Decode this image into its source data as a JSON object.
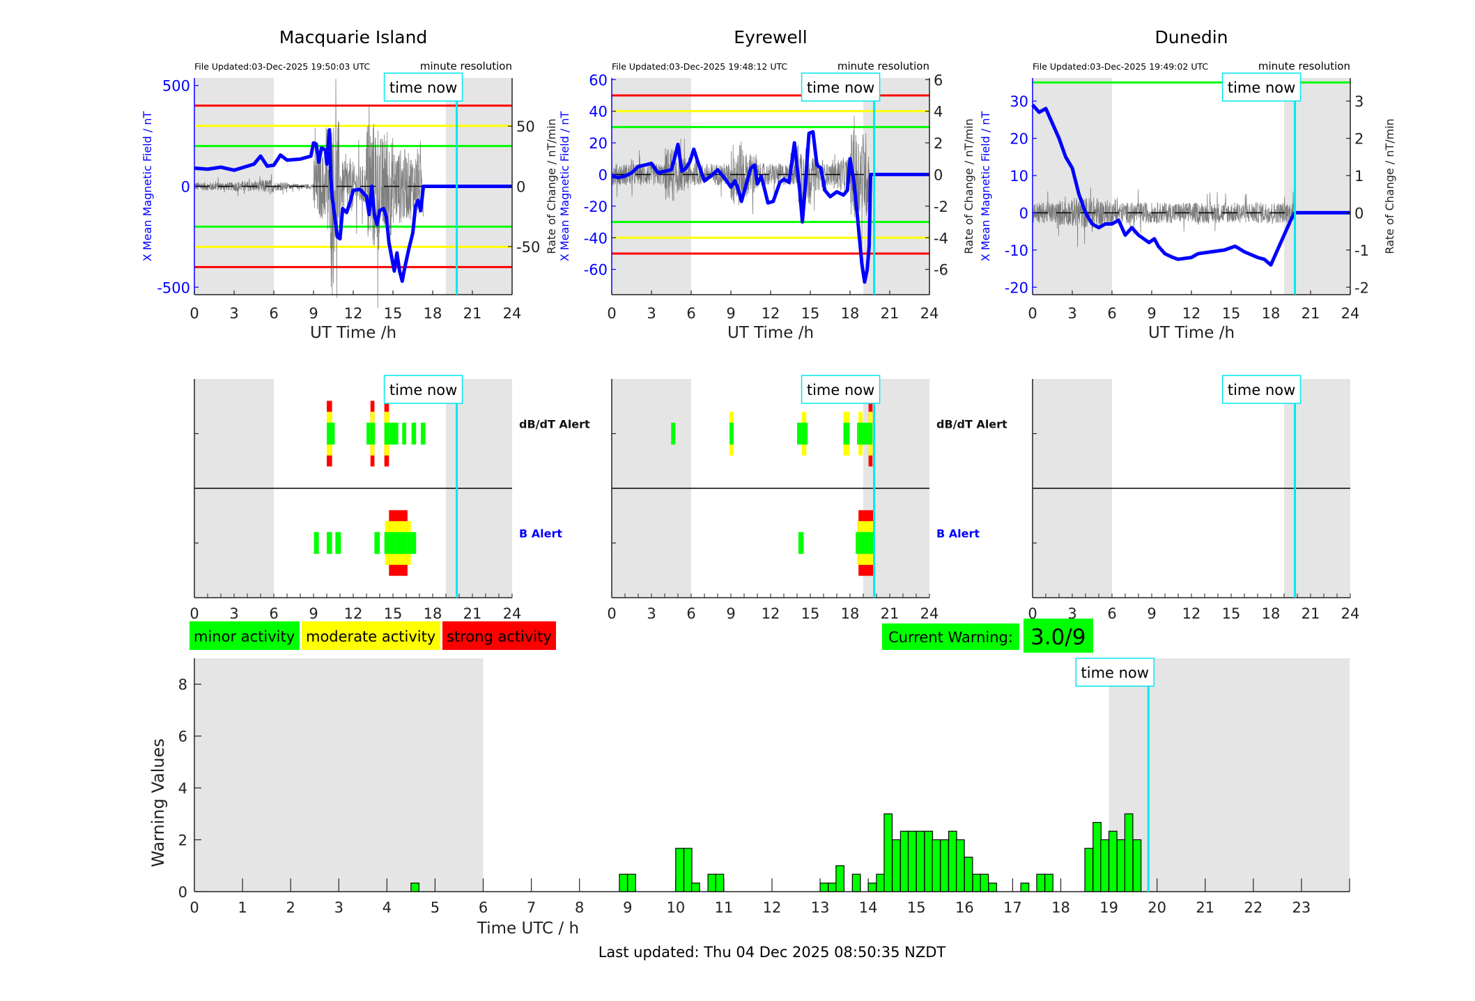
{
  "colors": {
    "field": "#0000ff",
    "rate": "#555555",
    "minor": "#00ff00",
    "moderate": "#ffff00",
    "strong": "#ff0000",
    "time_now": "#00e8f0",
    "night_shade": "#e5e5e5"
  },
  "time_now_label": "time now",
  "time_now_hours": 19.82,
  "night_shade": [
    [
      0,
      6
    ],
    [
      19,
      24
    ]
  ],
  "stations": [
    {
      "title": "Macquarie Island",
      "file_updated": "File Updated:03-Dec-2025 19:50:03 UTC",
      "resolution": "minute resolution",
      "left_label": "X Mean Magnetic Field / nT",
      "right_label": "Rate of Change / nT/min",
      "xlabel": "UT Time /h",
      "xticks": [
        "0",
        "3",
        "6",
        "9",
        "12",
        "15",
        "18",
        "21",
        "24"
      ],
      "ylim_left": [
        -537,
        537
      ],
      "ylim_right": [
        -90,
        90
      ],
      "yticks_left": [
        "500",
        "0",
        "-500"
      ],
      "yticks_right": [
        "50",
        "0",
        "-50"
      ],
      "thresholds": [
        {
          "value": 400,
          "level": "strong"
        },
        {
          "value": 300,
          "level": "moderate"
        },
        {
          "value": 200,
          "level": "minor"
        },
        {
          "value": -200,
          "level": "minor"
        },
        {
          "value": -300,
          "level": "moderate"
        },
        {
          "value": -400,
          "level": "strong"
        }
      ],
      "x_field": [
        [
          0,
          90
        ],
        [
          1,
          85
        ],
        [
          2,
          95
        ],
        [
          3,
          80
        ],
        [
          4,
          100
        ],
        [
          4.5,
          110
        ],
        [
          5,
          150
        ],
        [
          5.5,
          100
        ],
        [
          6,
          105
        ],
        [
          6.5,
          155
        ],
        [
          7,
          130
        ],
        [
          8,
          135
        ],
        [
          8.8,
          150
        ],
        [
          9,
          215
        ],
        [
          9.2,
          210
        ],
        [
          9.4,
          120
        ],
        [
          9.6,
          190
        ],
        [
          9.9,
          180
        ],
        [
          10.0,
          110
        ],
        [
          10.2,
          280
        ],
        [
          10.3,
          50
        ],
        [
          10.4,
          -50
        ],
        [
          10.6,
          -150
        ],
        [
          10.8,
          -250
        ],
        [
          11,
          -260
        ],
        [
          11.2,
          -110
        ],
        [
          11.5,
          -130
        ],
        [
          11.8,
          -70
        ],
        [
          12,
          -20
        ],
        [
          12.5,
          -15
        ],
        [
          13,
          -50
        ],
        [
          13.2,
          -140
        ],
        [
          13.4,
          0
        ],
        [
          13.6,
          -140
        ],
        [
          13.8,
          -190
        ],
        [
          14.0,
          -120
        ],
        [
          14.3,
          -110
        ],
        [
          14.5,
          -150
        ],
        [
          14.7,
          -280
        ],
        [
          14.9,
          -350
        ],
        [
          15.1,
          -420
        ],
        [
          15.3,
          -330
        ],
        [
          15.5,
          -420
        ],
        [
          15.7,
          -470
        ],
        [
          15.9,
          -400
        ],
        [
          16.2,
          -310
        ],
        [
          16.5,
          -230
        ],
        [
          16.7,
          -100
        ],
        [
          16.9,
          -70
        ],
        [
          17.1,
          -120
        ],
        [
          17.3,
          0
        ],
        [
          24,
          0
        ]
      ],
      "rate_envelope": [
        5,
        5,
        5,
        6,
        6,
        8,
        5,
        3,
        3,
        40,
        80,
        30,
        25,
        80,
        60,
        45,
        40,
        40,
        0,
        0,
        0,
        0,
        0,
        0
      ],
      "rate_end": 17.3,
      "alerts": {
        "dbdt_label": "dB/dT Alert",
        "b_label": "B Alert",
        "dbdt": [
          [
            10.0,
            10.4,
            3
          ],
          [
            10.4,
            10.6,
            1
          ],
          [
            13.0,
            13.3,
            1
          ],
          [
            13.3,
            13.6,
            3
          ],
          [
            13.6,
            13.65,
            1
          ],
          [
            14.35,
            14.7,
            3
          ],
          [
            14.7,
            15.4,
            1
          ],
          [
            15.7,
            16.0,
            1
          ],
          [
            16.4,
            16.75,
            1
          ],
          [
            17.1,
            17.45,
            1
          ]
        ],
        "b": [
          [
            9.03,
            9.4,
            1
          ],
          [
            10.0,
            10.4,
            1
          ],
          [
            10.65,
            11.07,
            1
          ],
          [
            13.6,
            14.0,
            1
          ],
          [
            14.35,
            14.4,
            1
          ],
          [
            14.4,
            14.7,
            2
          ],
          [
            14.7,
            16.1,
            3
          ],
          [
            16.1,
            16.35,
            2
          ],
          [
            16.35,
            16.75,
            1
          ]
        ]
      }
    },
    {
      "title": "Eyrewell",
      "file_updated": "File Updated:03-Dec-2025 19:48:12 UTC",
      "resolution": "minute resolution",
      "left_label": "X Mean Magnetic Field / nT",
      "right_label": "Rate of Change / nT/min",
      "xlabel": "UT Time /h",
      "xticks": [
        "0",
        "3",
        "6",
        "9",
        "12",
        "15",
        "18",
        "21",
        "24"
      ],
      "ylim_left": [
        -76,
        61
      ],
      "ylim_right": [
        -7.6,
        6.1
      ],
      "yticks_left": [
        "60",
        "40",
        "20",
        "0",
        "-20",
        "-40",
        "-60"
      ],
      "yticks_right": [
        "6",
        "4",
        "2",
        "0",
        "-2",
        "-4",
        "-6"
      ],
      "thresholds": [
        {
          "value": 50,
          "level": "strong"
        },
        {
          "value": 40,
          "level": "moderate"
        },
        {
          "value": 30,
          "level": "minor"
        },
        {
          "value": -30,
          "level": "minor"
        },
        {
          "value": -40,
          "level": "moderate"
        },
        {
          "value": -50,
          "level": "strong"
        }
      ],
      "x_field": [
        [
          0,
          -1
        ],
        [
          0.5,
          -2
        ],
        [
          1,
          -1
        ],
        [
          1.5,
          1
        ],
        [
          2,
          5
        ],
        [
          2.5,
          6
        ],
        [
          3,
          7
        ],
        [
          3.5,
          1
        ],
        [
          4,
          2
        ],
        [
          4.5,
          3
        ],
        [
          4.8,
          12
        ],
        [
          5,
          19
        ],
        [
          5.3,
          2
        ],
        [
          5.6,
          4
        ],
        [
          5.9,
          8
        ],
        [
          6.2,
          16
        ],
        [
          6.5,
          8
        ],
        [
          7,
          -4
        ],
        [
          7.5,
          -1
        ],
        [
          8,
          3
        ],
        [
          8.5,
          -2
        ],
        [
          9,
          -8
        ],
        [
          9.3,
          -4
        ],
        [
          9.5,
          -8
        ],
        [
          9.8,
          -17
        ],
        [
          10.2,
          -5
        ],
        [
          10.5,
          4
        ],
        [
          10.8,
          6
        ],
        [
          11,
          -6
        ],
        [
          11.3,
          -1
        ],
        [
          11.8,
          -18
        ],
        [
          12.2,
          -17
        ],
        [
          12.7,
          -5
        ],
        [
          13,
          -3
        ],
        [
          13.4,
          -5
        ],
        [
          13.8,
          20
        ],
        [
          14.2,
          -10
        ],
        [
          14.4,
          -30
        ],
        [
          14.6,
          -10
        ],
        [
          14.9,
          26
        ],
        [
          15.2,
          27
        ],
        [
          15.5,
          6
        ],
        [
          15.8,
          4
        ],
        [
          16.1,
          -10
        ],
        [
          16.5,
          -14
        ],
        [
          17.0,
          -11
        ],
        [
          17.5,
          -13
        ],
        [
          17.8,
          -10
        ],
        [
          18.0,
          10
        ],
        [
          18.3,
          -5
        ],
        [
          18.6,
          -30
        ],
        [
          18.9,
          -57
        ],
        [
          19.1,
          -68
        ],
        [
          19.3,
          -60
        ],
        [
          19.45,
          -45
        ],
        [
          19.55,
          0
        ],
        [
          24,
          0
        ]
      ],
      "rate_envelope": [
        1,
        1,
        1,
        1,
        2.5,
        1.5,
        1,
        1,
        1,
        3,
        2,
        1,
        1,
        1,
        3,
        1.5,
        1,
        1.5,
        4,
        4,
        0,
        0,
        0,
        0
      ],
      "rate_end": 19.5,
      "alerts": {
        "dbdt_label": "dB/dT Alert",
        "b_label": "B Alert",
        "dbdt": [
          [
            4.49,
            4.8,
            1
          ],
          [
            8.9,
            9.2,
            2
          ],
          [
            14.0,
            14.36,
            1
          ],
          [
            14.36,
            14.7,
            2
          ],
          [
            14.7,
            14.8,
            1
          ],
          [
            17.5,
            17.97,
            2
          ],
          [
            18.53,
            18.64,
            1
          ],
          [
            18.64,
            18.95,
            2
          ],
          [
            18.95,
            19.4,
            1
          ],
          [
            19.4,
            19.7,
            3
          ]
        ],
        "b": [
          [
            14.1,
            14.5,
            1
          ],
          [
            18.43,
            18.55,
            1
          ],
          [
            18.55,
            18.64,
            2
          ],
          [
            18.64,
            19.75,
            3
          ]
        ]
      }
    },
    {
      "title": "Dunedin",
      "file_updated": "File Updated:03-Dec-2025 19:49:02 UTC",
      "resolution": "minute resolution",
      "left_label": "X Mean Magnetic Field / nT",
      "right_label": "Rate of Change / nT/min",
      "xlabel": "UT Time /h",
      "xticks": [
        "0",
        "3",
        "6",
        "9",
        "12",
        "15",
        "18",
        "21",
        "24"
      ],
      "ylim_left": [
        -22,
        36.2
      ],
      "ylim_right": [
        -2.2,
        3.62
      ],
      "yticks_left": [
        "30",
        "20",
        "10",
        "0",
        "-10",
        "-20"
      ],
      "yticks_right": [
        "3",
        "2",
        "1",
        "0",
        "-1",
        "-2"
      ],
      "thresholds": [
        {
          "value": 35,
          "level": "minor"
        }
      ],
      "x_field": [
        [
          0,
          29
        ],
        [
          0.5,
          27
        ],
        [
          1,
          28
        ],
        [
          2,
          20
        ],
        [
          2.5,
          15
        ],
        [
          3,
          12
        ],
        [
          3.5,
          5
        ],
        [
          4,
          0
        ],
        [
          4.5,
          -3
        ],
        [
          5,
          -4
        ],
        [
          5.5,
          -3
        ],
        [
          6,
          -3
        ],
        [
          6.5,
          -2
        ],
        [
          7,
          -6
        ],
        [
          7.5,
          -4
        ],
        [
          8,
          -6
        ],
        [
          8.8,
          -8
        ],
        [
          9.2,
          -7
        ],
        [
          9.5,
          -9
        ],
        [
          10,
          -11
        ],
        [
          10.6,
          -12
        ],
        [
          11,
          -12.5
        ],
        [
          12,
          -12
        ],
        [
          12.5,
          -11
        ],
        [
          13.5,
          -10.5
        ],
        [
          14.5,
          -10
        ],
        [
          15.3,
          -9
        ],
        [
          16,
          -10.5
        ],
        [
          17,
          -12
        ],
        [
          17.5,
          -12.5
        ],
        [
          18,
          -14
        ],
        [
          18.5,
          -10
        ],
        [
          19,
          -6
        ],
        [
          19.5,
          -2
        ],
        [
          19.8,
          0
        ],
        [
          24,
          0
        ]
      ],
      "rate_envelope": [
        0.4,
        0.4,
        0.5,
        0.6,
        0.6,
        0.5,
        0.4,
        0.4,
        0.4,
        0.4,
        0.4,
        0.4,
        0.4,
        0.4,
        0.4,
        0.4,
        0.4,
        0.4,
        0.4,
        0.4,
        0,
        0,
        0,
        0
      ],
      "rate_end": 19.8,
      "alerts": {
        "dbdt_label": "",
        "b_label": "",
        "dbdt": [],
        "b": []
      }
    }
  ],
  "alert_xticks": [
    "0",
    "3",
    "6",
    "9",
    "12",
    "15",
    "18",
    "21",
    "24"
  ],
  "legend": {
    "minor": "minor activity",
    "moderate": "moderate activity",
    "strong": "strong activity"
  },
  "current_warning": {
    "label": "Current Warning:",
    "value": "3.0/9"
  },
  "chart_data": {
    "type": "bar",
    "ylabel": "Warning Values",
    "xlabel": "Time UTC / h",
    "ylim": [
      0,
      9
    ],
    "xlim": [
      0,
      24
    ],
    "yticks": [
      "0",
      "2",
      "4",
      "6",
      "8"
    ],
    "xticks": [
      "0",
      "1",
      "2",
      "3",
      "4",
      "5",
      "6",
      "7",
      "8",
      "9",
      "10",
      "11",
      "12",
      "13",
      "14",
      "15",
      "16",
      "17",
      "18",
      "19",
      "20",
      "21",
      "22",
      "23"
    ],
    "bars": [
      {
        "start": 4.5,
        "value": 0.33
      },
      {
        "start": 8.83,
        "value": 0.67
      },
      {
        "start": 9.0,
        "value": 0.67
      },
      {
        "start": 10.0,
        "value": 1.67
      },
      {
        "start": 10.17,
        "value": 1.67
      },
      {
        "start": 10.33,
        "value": 0.33
      },
      {
        "start": 10.67,
        "value": 0.67
      },
      {
        "start": 10.83,
        "value": 0.67
      },
      {
        "start": 13.0,
        "value": 0.33
      },
      {
        "start": 13.17,
        "value": 0.33
      },
      {
        "start": 13.33,
        "value": 1.0
      },
      {
        "start": 13.67,
        "value": 0.67
      },
      {
        "start": 14.0,
        "value": 0.33
      },
      {
        "start": 14.17,
        "value": 0.67
      },
      {
        "start": 14.33,
        "value": 3.0
      },
      {
        "start": 14.5,
        "value": 2.0
      },
      {
        "start": 14.67,
        "value": 2.33
      },
      {
        "start": 14.83,
        "value": 2.33
      },
      {
        "start": 15.0,
        "value": 2.33
      },
      {
        "start": 15.17,
        "value": 2.33
      },
      {
        "start": 15.33,
        "value": 2.0
      },
      {
        "start": 15.5,
        "value": 2.0
      },
      {
        "start": 15.67,
        "value": 2.33
      },
      {
        "start": 15.83,
        "value": 2.0
      },
      {
        "start": 16.0,
        "value": 1.33
      },
      {
        "start": 16.17,
        "value": 0.67
      },
      {
        "start": 16.33,
        "value": 0.67
      },
      {
        "start": 16.5,
        "value": 0.33
      },
      {
        "start": 17.17,
        "value": 0.33
      },
      {
        "start": 17.5,
        "value": 0.67
      },
      {
        "start": 17.67,
        "value": 0.67
      },
      {
        "start": 18.5,
        "value": 1.67
      },
      {
        "start": 18.67,
        "value": 2.67
      },
      {
        "start": 18.83,
        "value": 2.0
      },
      {
        "start": 19.0,
        "value": 2.33
      },
      {
        "start": 19.17,
        "value": 2.0
      },
      {
        "start": 19.33,
        "value": 3.0
      },
      {
        "start": 19.5,
        "value": 2.0
      }
    ]
  },
  "footer": "Last updated: Thu 04 Dec 2025 08:50:35 NZDT"
}
